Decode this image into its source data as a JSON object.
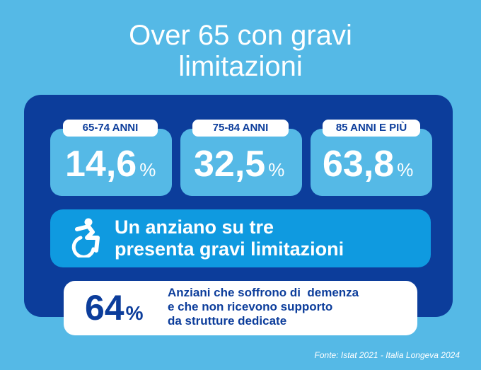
{
  "title": {
    "line1": "Over 65 con gravi",
    "line2": "limitazioni"
  },
  "stats": [
    {
      "label": "65-74 ANNI",
      "value": "14,6",
      "unit": "%"
    },
    {
      "label": "75-84 ANNI",
      "value": "32,5",
      "unit": "%"
    },
    {
      "label": "85 ANNI E PIÙ",
      "value": "63,8",
      "unit": "%"
    }
  ],
  "highlight": {
    "icon": "wheelchair-icon",
    "line1": "Un anziano su tre",
    "line2": "presenta gravi limitazioni"
  },
  "dementia": {
    "value": "64",
    "unit": "%",
    "line1": "Anziani che soffrono di  demenza",
    "line2": "e che non ricevono supporto",
    "line3": "da strutture dedicate"
  },
  "source": "Fonte: Istat 2021 - Italia Longeva 2024",
  "colors": {
    "background": "#55b9e6",
    "panel": "#0c3d9b",
    "highlight": "#0f9ae0",
    "white": "#ffffff"
  }
}
